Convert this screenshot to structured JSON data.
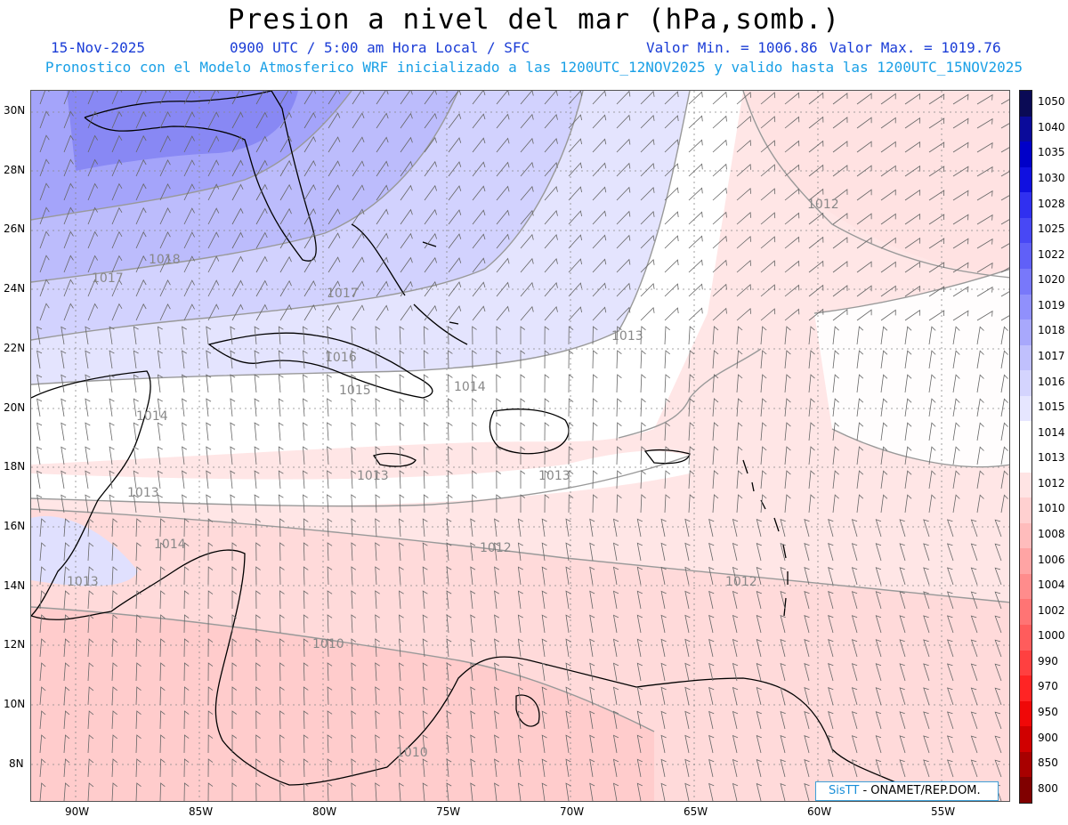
{
  "header": {
    "title": "Presion a nivel del mar (hPa,somb.)",
    "date": "15-Nov-2025",
    "time_info": "0900 UTC / 5:00 am Hora Local / SFC",
    "min_label": "Valor Min. = 1006.86",
    "max_label": "Valor Max. = 1019.76",
    "model_info": "Pronostico con el Modelo Atmosferico WRF inicializado a las 1200UTC_12NOV2025 y valido hasta las  1200UTC_15NOV2025"
  },
  "map": {
    "lat_labels": [
      "30N",
      "28N",
      "26N",
      "24N",
      "22N",
      "20N",
      "18N",
      "16N",
      "14N",
      "12N",
      "10N",
      "8N"
    ],
    "lon_labels": [
      "90W",
      "85W",
      "80W",
      "75W",
      "70W",
      "65W",
      "60W",
      "55W"
    ],
    "contour_labels": [
      "1012",
      "1018",
      "1017",
      "1017",
      "1016",
      "1015",
      "1014",
      "1014",
      "1013",
      "1013",
      "1013",
      "1013",
      "1014",
      "1013",
      "1012",
      "1012",
      "1010",
      "1010"
    ],
    "min_value": 1006.86,
    "max_value": 1019.76
  },
  "colorbar": {
    "levels": [
      "1050",
      "1040",
      "1035",
      "1030",
      "1028",
      "1025",
      "1022",
      "1020",
      "1019",
      "1018",
      "1017",
      "1016",
      "1015",
      "1014",
      "1013",
      "1012",
      "1010",
      "1008",
      "1006",
      "1004",
      "1002",
      "1000",
      "990",
      "970",
      "950",
      "900",
      "850",
      "800"
    ],
    "colors": [
      "#0a0a55",
      "#0a0a9a",
      "#0000c8",
      "#1010e0",
      "#3030f0",
      "#4848f5",
      "#6060f8",
      "#7878fa",
      "#9090fc",
      "#a8a8fc",
      "#c0c0fd",
      "#d4d4fe",
      "#e6e6ff",
      "#ffffff",
      "#ffffff",
      "#ffe4e4",
      "#ffd0d0",
      "#ffbcbc",
      "#ffa4a4",
      "#ff8c8c",
      "#ff7474",
      "#ff5c5c",
      "#ff4040",
      "#ff2424",
      "#f00808",
      "#d00000",
      "#a80000",
      "#800000"
    ]
  },
  "credit": {
    "logo": "SisTT",
    "text": "- ONAMET/REP.DOM."
  }
}
